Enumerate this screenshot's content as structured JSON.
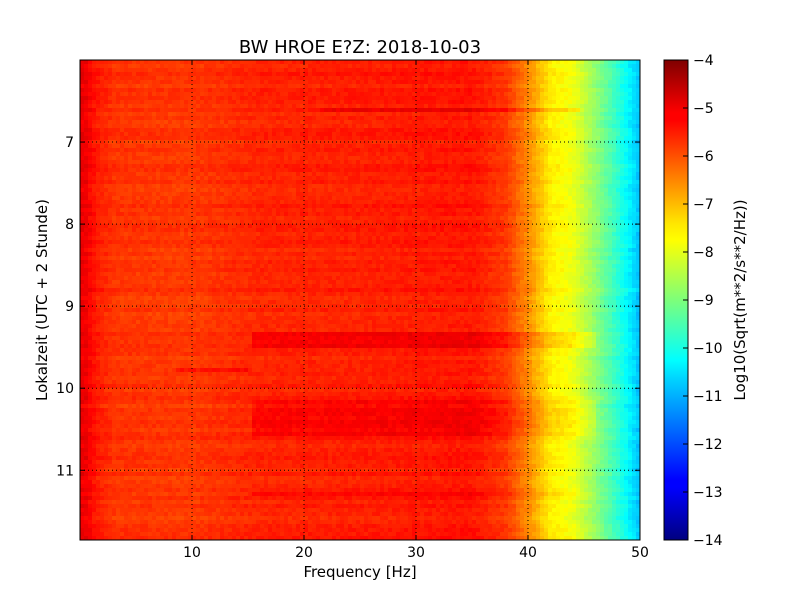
{
  "chart_data": {
    "type": "heatmap",
    "title": "BW HROE E?Z: 2018-10-03",
    "xlabel": "Frequency [Hz]",
    "ylabel": "Lokalzeit (UTC + 2 Stunde)",
    "colorbar_label": "Log10(Sqrt(m**2/s**2/Hz))",
    "xlim": [
      0,
      50
    ],
    "ylim": [
      6.0,
      11.85
    ],
    "y_inverted": true,
    "xticks": [
      10,
      20,
      30,
      40,
      50
    ],
    "yticks": [
      7,
      8,
      9,
      10,
      11
    ],
    "clim": [
      -14,
      -4
    ],
    "cticks": [
      -4,
      -5,
      -6,
      -7,
      -8,
      -9,
      -10,
      -11,
      -12,
      -13,
      -14
    ],
    "colormap": "jet",
    "grid": true,
    "grid_style": "dotted",
    "spectrum_profile": [
      {
        "freq": 0.5,
        "value": -5.1
      },
      {
        "freq": 1.5,
        "value": -5.5
      },
      {
        "freq": 3,
        "value": -5.75
      },
      {
        "freq": 10,
        "value": -5.8
      },
      {
        "freq": 16,
        "value": -5.6
      },
      {
        "freq": 25,
        "value": -5.55
      },
      {
        "freq": 35,
        "value": -5.45
      },
      {
        "freq": 38,
        "value": -5.8
      },
      {
        "freq": 40,
        "value": -6.6
      },
      {
        "freq": 42,
        "value": -7.6
      },
      {
        "freq": 44,
        "value": -7.9
      },
      {
        "freq": 46,
        "value": -8.8
      },
      {
        "freq": 48,
        "value": -9.8
      },
      {
        "freq": 49.5,
        "value": -10.6
      },
      {
        "freq": 50,
        "value": -10.9
      }
    ],
    "high_power_bands": [
      {
        "time_start": 9.3,
        "time_end": 9.5,
        "freq_start": 15.5,
        "freq_end": 46,
        "delta": 0.35
      },
      {
        "time_start": 10.15,
        "time_end": 10.6,
        "freq_start": 15.5,
        "freq_end": 46,
        "delta": 0.3
      },
      {
        "time_start": 11.25,
        "time_end": 11.3,
        "freq_start": 15.5,
        "freq_end": 46,
        "delta": 0.3
      },
      {
        "time_start": 6.6,
        "time_end": 6.65,
        "freq_start": 21.5,
        "freq_end": 44.5,
        "delta": 0.4
      },
      {
        "time_start": 9.75,
        "time_end": 9.8,
        "freq_start": 8.5,
        "freq_end": 15,
        "delta": 0.35
      }
    ],
    "source_label": "BW HROE E?Z"
  }
}
